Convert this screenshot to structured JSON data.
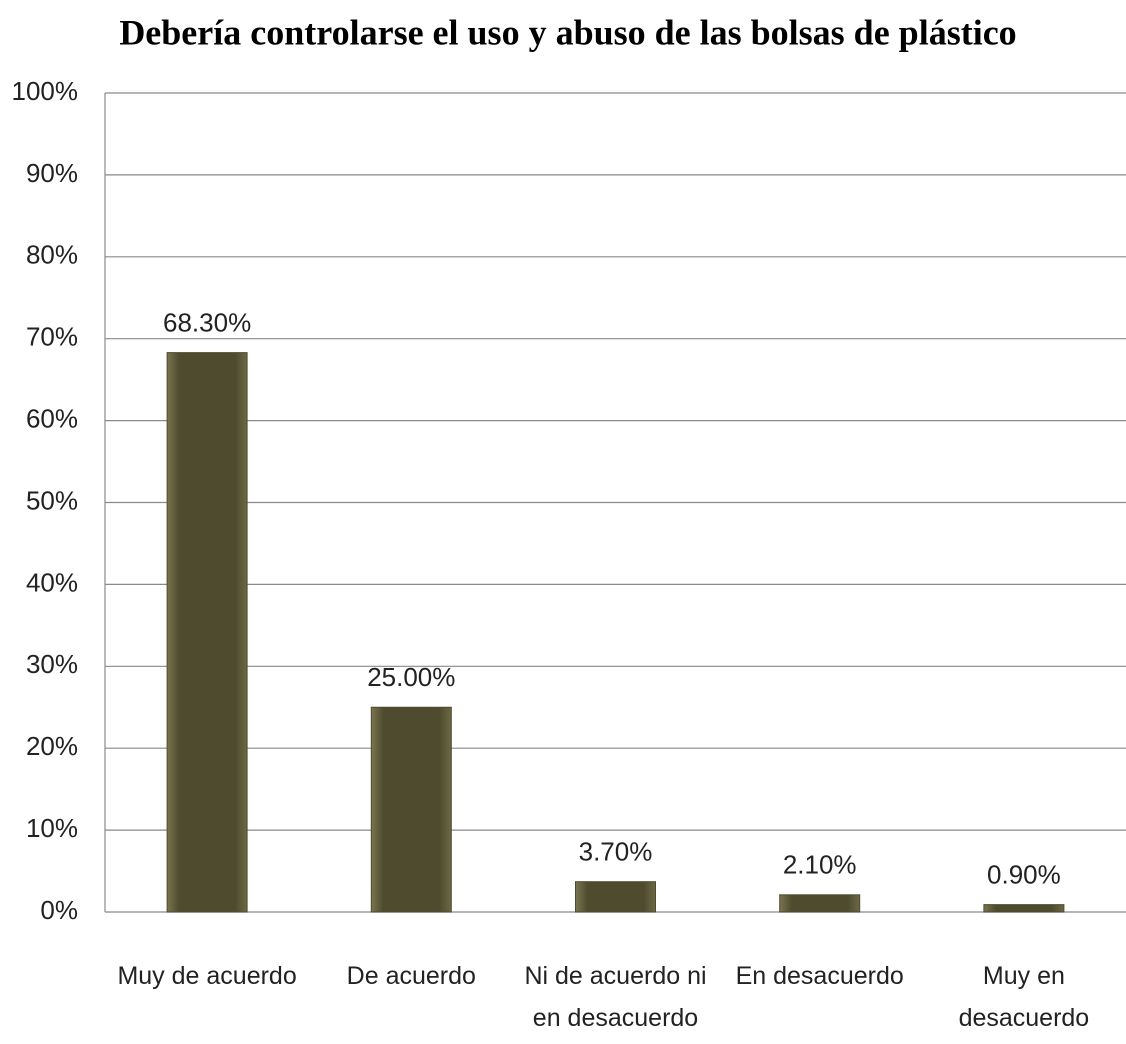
{
  "chart_data": {
    "type": "bar",
    "title": "Debería controlarse el uso y abuso de las bolsas de plástico",
    "categories": [
      "Muy de acuerdo",
      "De acuerdo",
      "Ni de acuerdo ni en desacuerdo",
      "En desacuerdo",
      "Muy en desacuerdo"
    ],
    "values": [
      68.3,
      25,
      3.7,
      2.1,
      0.9
    ],
    "value_labels": [
      "68.30%",
      "25.00%",
      "3.70%",
      "2.10%",
      "0.90%"
    ],
    "color": "#4f4b2f",
    "ylim": [
      0,
      100
    ],
    "yticks": [
      {
        "value": 0,
        "label": "0%"
      },
      {
        "value": 10,
        "label": "10%"
      },
      {
        "value": 20,
        "label": "20%"
      },
      {
        "value": 30,
        "label": "30%"
      },
      {
        "value": 40,
        "label": "40%"
      },
      {
        "value": 50,
        "label": "50%"
      },
      {
        "value": 60,
        "label": "60%"
      },
      {
        "value": 70,
        "label": "70%"
      },
      {
        "value": 80,
        "label": "80%"
      },
      {
        "value": 90,
        "label": "90%"
      },
      {
        "value": 100,
        "label": "100%"
      }
    ],
    "grid": true
  }
}
